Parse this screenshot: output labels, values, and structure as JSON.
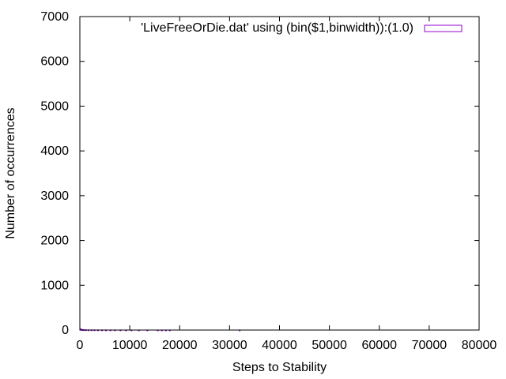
{
  "chart_data": {
    "type": "bar",
    "title": "",
    "xlabel": "Steps to Stability",
    "ylabel": "Number of occurrences",
    "xlim": [
      0,
      80000
    ],
    "ylim": [
      0,
      7000
    ],
    "x_ticks": [
      0,
      10000,
      20000,
      30000,
      40000,
      50000,
      60000,
      70000,
      80000
    ],
    "y_ticks": [
      0,
      1000,
      2000,
      3000,
      4000,
      5000,
      6000,
      7000
    ],
    "grid": false,
    "legend_position": "top-right",
    "series": [
      {
        "name": "'LiveFreeOrDie.dat' using (bin($1,binwidth)):(1.0)",
        "color": "#9400d3",
        "bar_width": 100,
        "x": [
          100,
          200,
          300,
          500,
          800,
          1200,
          1700,
          2300,
          2900,
          3600,
          4400,
          5200,
          6100,
          7000,
          8100,
          9200,
          10300,
          11800,
          13500,
          15600,
          16400,
          17200,
          18000,
          32000
        ],
        "values": [
          25,
          18,
          14,
          10,
          8,
          6,
          5,
          4,
          4,
          3,
          3,
          2,
          2,
          2,
          2,
          1,
          1,
          1,
          1,
          1,
          1,
          1,
          1,
          1
        ]
      }
    ]
  }
}
